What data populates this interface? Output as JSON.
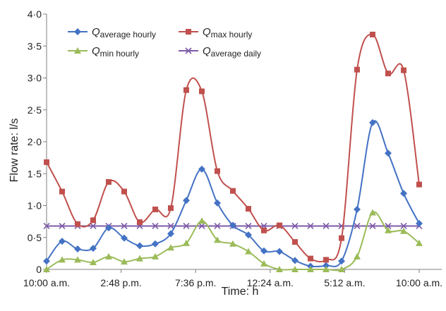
{
  "chart_data": {
    "type": "line",
    "xlabel": "Time: h",
    "ylabel": "Flow rate: l/s",
    "ylim": [
      0,
      4.0
    ],
    "yticks": [
      "0",
      "0·5",
      "1·0",
      "1·5",
      "2·0",
      "2·5",
      "3·0",
      "3·5",
      "4·0"
    ],
    "xtick_labels": [
      "10:00 a.m.",
      "2:48 p.m.",
      "7:36 p.m.",
      "12:24 a.m.",
      "5:12 a.m.",
      "10:00 a.m."
    ],
    "x_hours": [
      0,
      1,
      2,
      3,
      4,
      5,
      6,
      7,
      8,
      9,
      10,
      11,
      12,
      13,
      14,
      15,
      16,
      17,
      18,
      19,
      20,
      21,
      22,
      23,
      24
    ],
    "legend_position": "top-left",
    "grid": false,
    "series": [
      {
        "name": "Q",
        "name_sub": "average hourly",
        "color": "#4472C4",
        "marker": "diamond",
        "values": [
          0.13,
          0.44,
          0.32,
          0.33,
          0.65,
          0.49,
          0.37,
          0.4,
          0.56,
          1.08,
          1.57,
          1.04,
          0.69,
          0.54,
          0.29,
          0.28,
          0.14,
          0.05,
          0.06,
          0.13,
          0.94,
          2.3,
          1.82,
          1.19,
          0.72
        ]
      },
      {
        "name": "Q",
        "name_sub": "max hourly",
        "color": "#C0504D",
        "marker": "square",
        "values": [
          1.68,
          1.22,
          0.71,
          0.77,
          1.37,
          1.22,
          0.74,
          0.94,
          0.96,
          2.81,
          2.79,
          1.54,
          1.23,
          0.95,
          0.61,
          0.69,
          0.43,
          0.17,
          0.15,
          0.49,
          3.13,
          3.68,
          3.07,
          3.12,
          1.33
        ]
      },
      {
        "name": "Q",
        "name_sub": "min hourly",
        "color": "#9BBB59",
        "marker": "triangle",
        "values": [
          0.0,
          0.15,
          0.15,
          0.11,
          0.2,
          0.12,
          0.17,
          0.2,
          0.34,
          0.41,
          0.76,
          0.46,
          0.4,
          0.28,
          0.09,
          0.0,
          0.0,
          0.0,
          0.0,
          0.0,
          0.2,
          0.89,
          0.61,
          0.6,
          0.41
        ]
      },
      {
        "name": "Q",
        "name_sub": "average daily",
        "color": "#7E5BA8",
        "marker": "x",
        "values": [
          0.68,
          0.68,
          0.68,
          0.68,
          0.68,
          0.68,
          0.68,
          0.68,
          0.68,
          0.68,
          0.68,
          0.68,
          0.68,
          0.68,
          0.68,
          0.68,
          0.68,
          0.68,
          0.68,
          0.68,
          0.68,
          0.68,
          0.68,
          0.68,
          0.68
        ]
      }
    ]
  }
}
